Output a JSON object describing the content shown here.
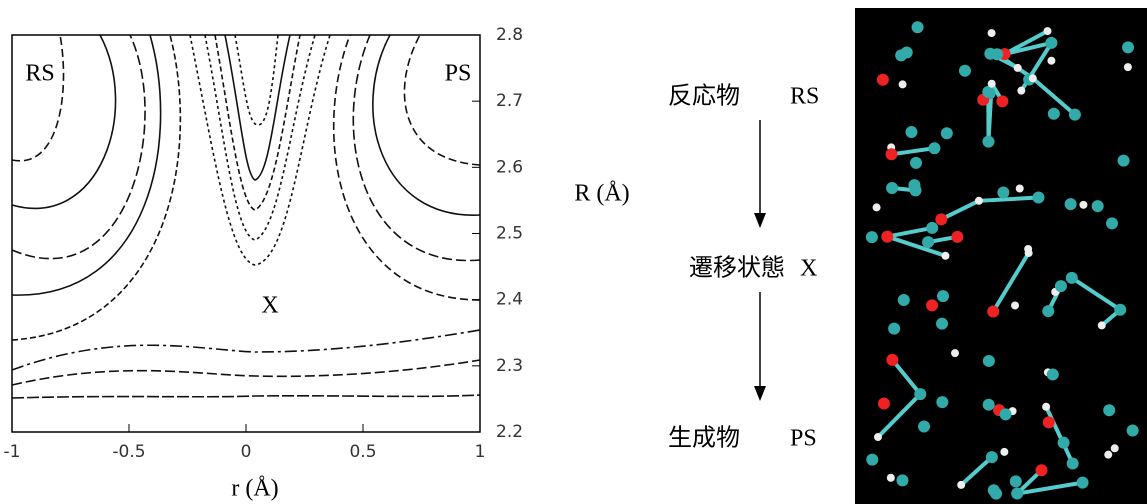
{
  "chart_data": {
    "type": "contour",
    "x_label": "r (Å)",
    "y_label": "R (Å)",
    "xlim": [
      -1,
      1
    ],
    "ylim": [
      2.2,
      2.8
    ],
    "xticks": [
      -1,
      -0.5,
      0,
      0.5,
      1
    ],
    "yticks": [
      2.2,
      2.3,
      2.4,
      2.5,
      2.6,
      2.7,
      2.8
    ],
    "annotations": [
      "RS",
      "PS",
      "X"
    ]
  },
  "scheme": {
    "steps": [
      {
        "label": "反応物",
        "code": "RS"
      },
      {
        "label": "遷移状態",
        "code": "X"
      },
      {
        "label": "生成物",
        "code": "PS"
      }
    ]
  }
}
